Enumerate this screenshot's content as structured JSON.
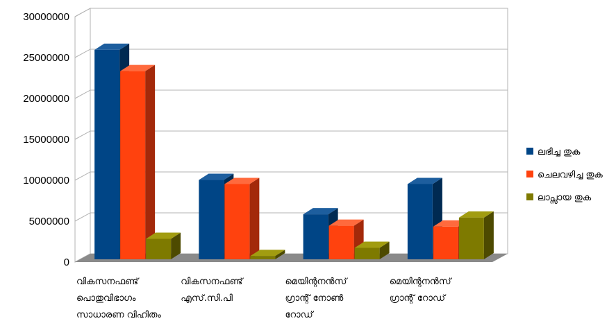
{
  "chart_data": {
    "type": "bar",
    "categories": [
      [
        "വികസനഫണ്ട്",
        "പൊതുവിഭാഗം",
        "സാധാരണ വിഹിതം"
      ],
      [
        "വികസനഫണ്ട്",
        "എസ്.സി.പി"
      ],
      [
        "മെയിന്റനൻസ്",
        "ഗ്രാന്റ് നോൺ",
        "റോഡ്"
      ],
      [
        "മെയിന്റനൻസ്",
        "ഗ്രാന്റ് റോഡ്"
      ]
    ],
    "series": [
      {
        "name": "ലഭിച്ച തുക",
        "values": [
          25600000,
          9700000,
          5500000,
          9200000
        ]
      },
      {
        "name": "ചെലവഴിച്ച തുക",
        "values": [
          23000000,
          9200000,
          4100000,
          4000000
        ]
      },
      {
        "name": "ലാപ്സായ തുക",
        "values": [
          2500000,
          400000,
          1400000,
          5100000
        ]
      }
    ],
    "ylim": [
      0,
      30000000
    ],
    "yticks": [
      "0",
      "5000000",
      "10000000",
      "15000000",
      "20000000",
      "25000000",
      "30000000"
    ],
    "grid": true,
    "legend_position": "right",
    "colors": {
      "series": [
        "#004586",
        "#ff420e",
        "#7e7a00"
      ],
      "series_dark": [
        "#002a52",
        "#a3290a",
        "#4d4a00"
      ],
      "series_top": [
        "#1d5e9e",
        "#ff6a3d",
        "#a19c10"
      ],
      "grid": "#b3b3b3",
      "floor": "#8a8a8a"
    }
  }
}
